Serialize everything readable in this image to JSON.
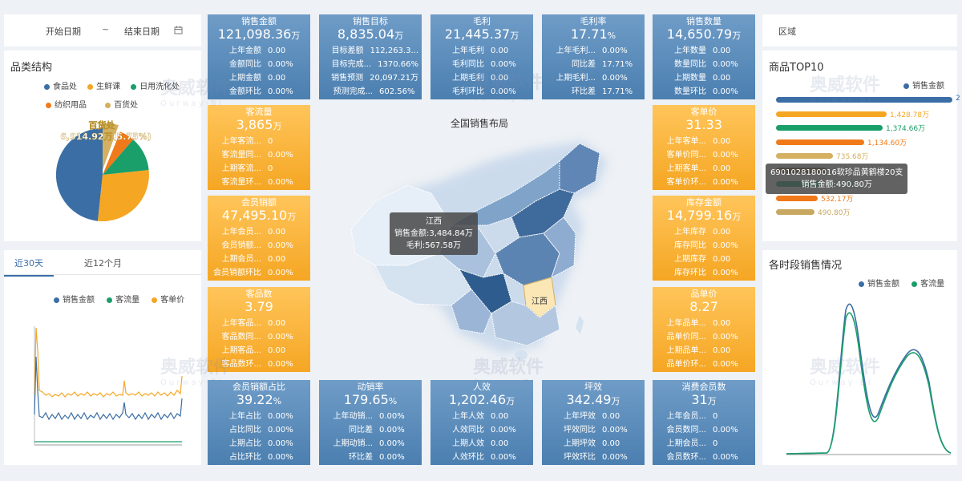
{
  "filters": {
    "start_date": "开始日期",
    "sep": "~",
    "end_date": "结束日期",
    "region": "区域"
  },
  "category": {
    "title": "品类结构",
    "legend": [
      {
        "label": "食品处",
        "color": "#3b6ea5"
      },
      {
        "label": "生鲜课",
        "color": "#f5a623"
      },
      {
        "label": "日用洗化处",
        "color": "#1a9e6a"
      },
      {
        "label": "纺织用品",
        "color": "#f07a1a"
      },
      {
        "label": "百货处",
        "color": "#d4b060"
      }
    ],
    "pie_label": "百货处",
    "pie_value": "6,914.92万(5.75%)"
  },
  "trend": {
    "tabs": [
      "近30天",
      "近12个月"
    ],
    "active_tab": 0,
    "legend": [
      {
        "label": "销售金额",
        "color": "#3b6ea5"
      },
      {
        "label": "客流量",
        "color": "#1a9e6a"
      },
      {
        "label": "客单价",
        "color": "#f5a623"
      }
    ]
  },
  "cards": [
    {
      "title": "销售金额",
      "value": "121,098.36",
      "unit": "万",
      "color": "blue",
      "rows": [
        [
          "上年金额",
          "0.00"
        ],
        [
          "金额同比",
          "0.00%"
        ],
        [
          "上期金额",
          "0.00"
        ],
        [
          "金额环比",
          "0.00%"
        ]
      ]
    },
    {
      "title": "销售目标",
      "value": "8,835.04",
      "unit": "万",
      "color": "blue",
      "rows": [
        [
          "目标差额",
          "112,263.3..."
        ],
        [
          "目标完成...",
          "1370.66%"
        ],
        [
          "销售预测",
          "20,097.21万"
        ],
        [
          "预测完成...",
          "602.56%"
        ]
      ]
    },
    {
      "title": "毛利",
      "value": "21,445.37",
      "unit": "万",
      "color": "blue",
      "rows": [
        [
          "上年毛利",
          "0.00"
        ],
        [
          "毛利同比",
          "0.00%"
        ],
        [
          "上期毛利",
          "0.00"
        ],
        [
          "毛利环比",
          "0.00%"
        ]
      ]
    },
    {
      "title": "毛利率",
      "value": "17.71",
      "unit": "%",
      "color": "blue",
      "rows": [
        [
          "上年毛利...",
          "0.00%"
        ],
        [
          "同比差",
          "17.71%"
        ],
        [
          "上期毛利...",
          "0.00%"
        ],
        [
          "环比差",
          "17.71%"
        ]
      ]
    },
    {
      "title": "销售数量",
      "value": "14,650.79",
      "unit": "万",
      "color": "blue",
      "rows": [
        [
          "上年数量",
          "0.00"
        ],
        [
          "数量同比",
          "0.00%"
        ],
        [
          "上期数量",
          "0.00"
        ],
        [
          "数量环比",
          "0.00%"
        ]
      ]
    },
    {
      "title": "客流量",
      "value": "3,865",
      "unit": "万",
      "color": "orange",
      "rows": [
        [
          "上年客流...",
          "0"
        ],
        [
          "客流量同...",
          "0.00%"
        ],
        [
          "上期客流...",
          "0"
        ],
        [
          "客流量环...",
          "0.00%"
        ]
      ]
    },
    {
      "title": "客单价",
      "value": "31.33",
      "unit": "",
      "color": "orange",
      "rows": [
        [
          "上年客单...",
          "0.00"
        ],
        [
          "客单价同...",
          "0.00%"
        ],
        [
          "上期客单...",
          "0.00"
        ],
        [
          "客单价环...",
          "0.00%"
        ]
      ]
    },
    {
      "title": "会员销额",
      "value": "47,495.10",
      "unit": "万",
      "color": "orange",
      "rows": [
        [
          "上年会员...",
          "0.00"
        ],
        [
          "会员销额...",
          "0.00%"
        ],
        [
          "上期会员...",
          "0.00"
        ],
        [
          "会员销额环比",
          "0.00%"
        ]
      ]
    },
    {
      "title": "库存金额",
      "value": "14,799.16",
      "unit": "万",
      "color": "orange",
      "rows": [
        [
          "上年库存",
          "0.00"
        ],
        [
          "库存同比",
          "0.00%"
        ],
        [
          "上期库存",
          "0.00"
        ],
        [
          "库存环比",
          "0.00%"
        ]
      ]
    },
    {
      "title": "客品数",
      "value": "3.79",
      "unit": "",
      "color": "orange",
      "rows": [
        [
          "上年客品...",
          "0.00"
        ],
        [
          "客品数同...",
          "0.00%"
        ],
        [
          "上期客品...",
          "0.00"
        ],
        [
          "客品数环...",
          "0.00%"
        ]
      ]
    },
    {
      "title": "品单价",
      "value": "8.27",
      "unit": "",
      "color": "orange",
      "rows": [
        [
          "上年品单...",
          "0.00"
        ],
        [
          "品单价同...",
          "0.00%"
        ],
        [
          "上期品单...",
          "0.00"
        ],
        [
          "品单价环...",
          "0.00%"
        ]
      ]
    },
    {
      "title": "会员销额占比",
      "value": "39.22",
      "unit": "%",
      "color": "blue",
      "rows": [
        [
          "上年占比",
          "0.00%"
        ],
        [
          "占比同比",
          "0.00%"
        ],
        [
          "上期占比",
          "0.00%"
        ],
        [
          "占比环比",
          "0.00%"
        ]
      ]
    },
    {
      "title": "动销率",
      "value": "179.65",
      "unit": "%",
      "color": "blue",
      "rows": [
        [
          "上年动销...",
          "0.00%"
        ],
        [
          "同比差",
          "0.00%"
        ],
        [
          "上期动销...",
          "0.00%"
        ],
        [
          "环比差",
          "0.00%"
        ]
      ]
    },
    {
      "title": "人效",
      "value": "1,202.46",
      "unit": "万",
      "color": "blue",
      "rows": [
        [
          "上年人效",
          "0.00"
        ],
        [
          "人效同比",
          "0.00%"
        ],
        [
          "上期人效",
          "0.00"
        ],
        [
          "人效环比",
          "0.00%"
        ]
      ]
    },
    {
      "title": "坪效",
      "value": "342.49",
      "unit": "万",
      "color": "blue",
      "rows": [
        [
          "上年坪效",
          "0.00"
        ],
        [
          "坪效同比",
          "0.00%"
        ],
        [
          "上期坪效",
          "0.00"
        ],
        [
          "坪效环比",
          "0.00%"
        ]
      ]
    },
    {
      "title": "消费会员数",
      "value": "31",
      "unit": "万",
      "color": "blue",
      "rows": [
        [
          "上年会员...",
          "0"
        ],
        [
          "会员数同...",
          "0.00%"
        ],
        [
          "上期会员...",
          "0"
        ],
        [
          "会员数环...",
          "0.00%"
        ]
      ]
    }
  ],
  "map": {
    "title": "全国销售布局",
    "tooltip_region": "江西",
    "tooltip_sales": "销售金额:3,484.84万",
    "tooltip_profit": "毛利:567.58万",
    "label": "江西"
  },
  "top10": {
    "title": "商品TOP10",
    "legend": "销售金额",
    "bars": [
      {
        "label": "2",
        "value": 2000,
        "color": "#3b6ea5"
      },
      {
        "label": "1,428.78万",
        "value": 1428.78,
        "color": "#f5a623"
      },
      {
        "label": "1,374.66万",
        "value": 1374.66,
        "color": "#1a9e6a"
      },
      {
        "label": "1,134.60万",
        "value": 1134.6,
        "color": "#f07a1a"
      },
      {
        "label": "735.68万",
        "value": 735.68,
        "color": "#d4b060"
      },
      {
        "label": "",
        "value": 650,
        "color": "#7a5a2a"
      },
      {
        "label": "588.28万",
        "value": 588.28,
        "color": "#1a9e6a"
      },
      {
        "label": "532.17万",
        "value": 532.17,
        "color": "#f07a1a"
      },
      {
        "label": "490.80万",
        "value": 490.8,
        "color": "#c8a860"
      }
    ],
    "tooltip_name": "6901028180016软珍品黄鹤楼20支",
    "tooltip_value": "销售金额:490.80万"
  },
  "hourly": {
    "title": "各时段销售情况",
    "legend": [
      {
        "label": "销售金额",
        "color": "#3b6ea5"
      },
      {
        "label": "客流量",
        "color": "#1a9e6a"
      }
    ]
  },
  "watermark": {
    "cn": "奥威软件",
    "en": "Ourway·BI"
  }
}
